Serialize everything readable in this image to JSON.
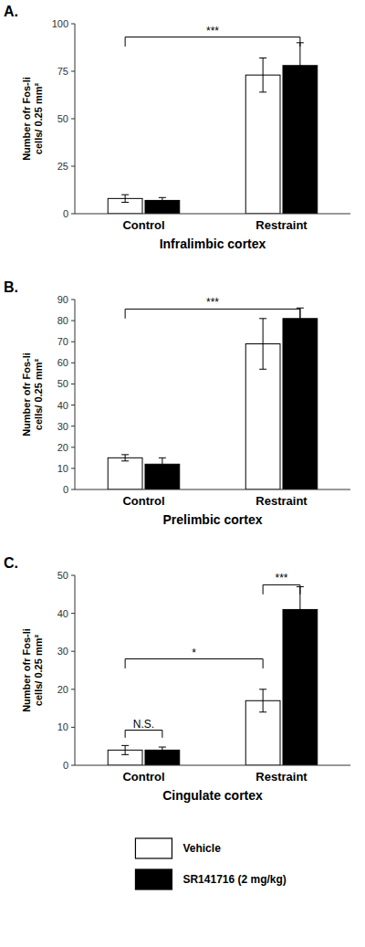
{
  "chart_data": [
    {
      "type": "bar",
      "title": "A.",
      "x_label": "Infralimbic cortex",
      "y_label": "Number ofr Fos-li\ncells/ 0.25 mm²",
      "categories": [
        "Control",
        "Restraint"
      ],
      "series": [
        {
          "name": "Vehicle",
          "color": "#ffffff",
          "values": [
            8,
            73
          ],
          "errors": [
            2,
            9
          ]
        },
        {
          "name": "SR141716 (2 mg/kg)",
          "color": "#000000",
          "values": [
            7,
            78
          ],
          "errors": [
            1.5,
            12
          ]
        }
      ],
      "ylim": [
        0,
        100
      ],
      "yticks": [
        0,
        25,
        50,
        75,
        100
      ],
      "grid": false,
      "annotations": [
        {
          "text": "***",
          "from": [
            0,
            0
          ],
          "to": [
            1,
            1
          ],
          "y": 93,
          "tick_down": 5
        }
      ]
    },
    {
      "type": "bar",
      "title": "B.",
      "x_label": "Prelimbic cortex",
      "y_label": "Number ofr Fos-li\ncells/ 0.25 mm²",
      "categories": [
        "Control",
        "Restraint"
      ],
      "series": [
        {
          "name": "Vehicle",
          "color": "#ffffff",
          "values": [
            15,
            69
          ],
          "errors": [
            1.5,
            12
          ]
        },
        {
          "name": "SR141716 (2 mg/kg)",
          "color": "#000000",
          "values": [
            12,
            81
          ],
          "errors": [
            3,
            5
          ]
        }
      ],
      "ylim": [
        0,
        90
      ],
      "yticks": [
        0,
        10,
        20,
        30,
        40,
        50,
        60,
        70,
        80,
        90
      ],
      "grid": false,
      "annotations": [
        {
          "text": "***",
          "from": [
            0,
            0
          ],
          "to": [
            1,
            1
          ],
          "y": 85.5,
          "tick_down": 4.5
        }
      ]
    },
    {
      "type": "bar",
      "title": "C.",
      "x_label": "Cingulate cortex",
      "y_label": "Number ofr Fos-li\ncells/ 0.25 mm²",
      "categories": [
        "Control",
        "Restraint"
      ],
      "series": [
        {
          "name": "Vehicle",
          "color": "#ffffff",
          "values": [
            4,
            17
          ],
          "errors": [
            1.2,
            3
          ]
        },
        {
          "name": "SR141716 (2 mg/kg)",
          "color": "#000000",
          "values": [
            4,
            41
          ],
          "errors": [
            0.8,
            6
          ]
        }
      ],
      "ylim": [
        0,
        50
      ],
      "yticks": [
        0,
        10,
        20,
        30,
        40,
        50
      ],
      "grid": false,
      "legend": "bottom",
      "annotations": [
        {
          "text": "N.S.",
          "from": [
            0,
            0
          ],
          "to": [
            0,
            1
          ],
          "y": 9.25,
          "tick_down": 2
        },
        {
          "text": "*",
          "from": [
            0,
            0
          ],
          "to": [
            1,
            0
          ],
          "y": 28,
          "tick_down": 2.5
        },
        {
          "text": "***",
          "from": [
            1,
            0
          ],
          "to": [
            1,
            1
          ],
          "y": 47.5,
          "tick_down": 2.5
        }
      ]
    }
  ]
}
